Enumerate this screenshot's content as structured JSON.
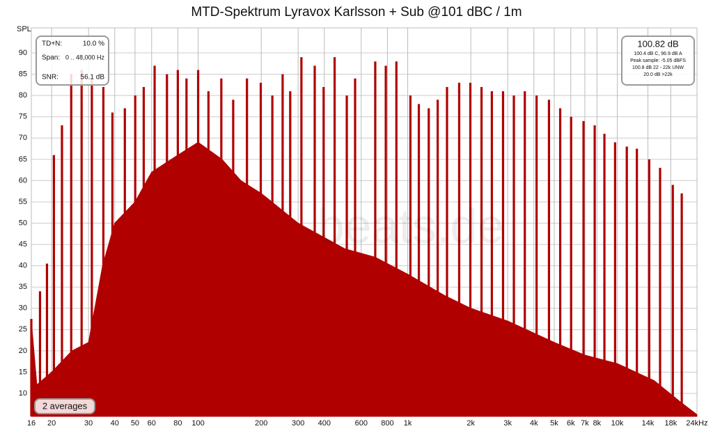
{
  "chart_data": {
    "type": "spectrum",
    "title": "MTD-Spektrum Lyravox Karlsson + Sub @101 dBC / 1m",
    "y_label": "SPL",
    "watermark": "beats.de",
    "log_x": true,
    "grid": true,
    "xlim": [
      16,
      24000
    ],
    "ylim": [
      4.6,
      95.9
    ],
    "xticks": [
      16,
      20,
      30,
      40,
      50,
      60,
      80,
      100,
      200,
      300,
      400,
      600,
      800,
      {
        "value": 1000,
        "label": "1k"
      },
      {
        "value": 2000,
        "label": "2k"
      },
      {
        "value": 3000,
        "label": "3k"
      },
      {
        "value": 4000,
        "label": "4k"
      },
      {
        "value": 5000,
        "label": "5k"
      },
      {
        "value": 6000,
        "label": "6k"
      },
      {
        "value": 7000,
        "label": "7k"
      },
      {
        "value": 8000,
        "label": "8k"
      },
      {
        "value": 10000,
        "label": "10k"
      },
      {
        "value": 14000,
        "label": "14k"
      },
      {
        "value": 18000,
        "label": "18k"
      },
      {
        "value": 24000,
        "label": "24kHz"
      }
    ],
    "yticks": [
      10,
      15,
      20,
      25,
      30,
      35,
      40,
      45,
      50,
      55,
      60,
      65,
      70,
      75,
      80,
      85,
      90
    ],
    "series": [
      {
        "mark": "area",
        "color": "#b00000",
        "x": [
          16,
          17,
          20,
          25,
          30,
          35,
          40,
          50,
          60,
          80,
          100,
          130,
          160,
          200,
          300,
          500,
          700,
          1000,
          1500,
          2000,
          3000,
          5000,
          7000,
          10000,
          15000,
          20000,
          24000
        ],
        "values": [
          27,
          12,
          15,
          20,
          22,
          40,
          50,
          55,
          62,
          66,
          69,
          65,
          60,
          57,
          50,
          44,
          42,
          38,
          33,
          30,
          27,
          22,
          19,
          17,
          13,
          8,
          5
        ]
      },
      {
        "mark": "stem",
        "color": "#b00000",
        "x": [
          16,
          17.6,
          19,
          20.5,
          22.4,
          24.8,
          27.8,
          31.1,
          35.3,
          39,
          44.7,
          50.1,
          55,
          62,
          71,
          80,
          88,
          100,
          112,
          129,
          147,
          171,
          199,
          226,
          253,
          275,
          311,
          360,
          397,
          448,
          512,
          561,
          700,
          786,
          883,
          1030,
          1130,
          1260,
          1390,
          1540,
          1760,
          1990,
          2250,
          2520,
          2850,
          3210,
          3620,
          4120,
          4720,
          5340,
          6020,
          6900,
          7800,
          8680,
          9760,
          11100,
          12400,
          14200,
          16000,
          18400,
          20300
        ],
        "values": [
          27.5,
          34,
          40.5,
          66,
          73,
          85,
          86,
          84,
          82,
          76,
          77,
          80,
          82,
          87,
          85,
          86,
          84,
          86,
          81,
          84,
          79,
          84,
          83,
          80,
          85,
          81,
          89,
          87,
          82,
          89,
          80,
          84,
          88,
          87,
          88,
          80,
          78,
          77,
          79,
          82,
          83,
          83,
          82,
          81,
          81,
          80,
          81,
          80,
          79,
          77,
          75,
          74,
          73,
          71,
          69,
          68,
          67.5,
          65,
          63,
          59,
          57
        ]
      }
    ],
    "stats_left": [
      [
        "TD+N:",
        "10.0 %"
      ],
      [
        "Span:",
        "0 .. 48,000 Hz"
      ],
      [
        "SNR:",
        "56.1 dB"
      ]
    ],
    "stats_right": {
      "headline": "100.82 dB",
      "lines": [
        "100.4 dB C, 96.9 dB A",
        "Peak sample: -5.05 dBFS",
        "100.8 dB 22 - 22k UNW",
        "20.0 dB >22k"
      ]
    },
    "averages": "2 averages"
  }
}
